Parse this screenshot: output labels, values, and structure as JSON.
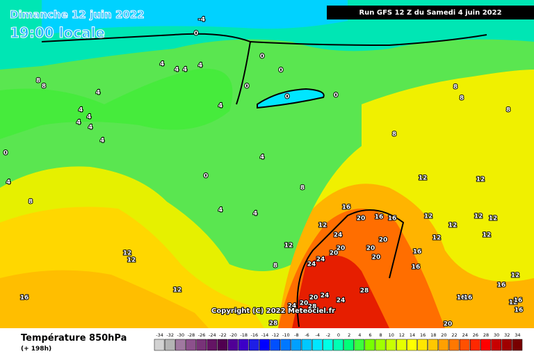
{
  "header": {
    "date": "Dimanche 12 juin 2022",
    "time": "19:00 locale",
    "run": "Run GFS 12 Z du Samedi 4 juin 2022"
  },
  "map": {
    "labels": [
      -4,
      0,
      0,
      0,
      0,
      0,
      0,
      4,
      4,
      4,
      4,
      4,
      4,
      4,
      4,
      4,
      4,
      4,
      8,
      8,
      4,
      8,
      0,
      0,
      4,
      4,
      4,
      8,
      8,
      8,
      8,
      8,
      8,
      12,
      12,
      12,
      16,
      12,
      16,
      12,
      12,
      12,
      12,
      12,
      12,
      12,
      12,
      12,
      12,
      20,
      16,
      16,
      24,
      20,
      20,
      20,
      20,
      20,
      24,
      24,
      16,
      16,
      12,
      20,
      24,
      24,
      28,
      20,
      24,
      28,
      28,
      16,
      16,
      16,
      20,
      16,
      16
    ],
    "copyright": "Copyright (C) 2022 Meteociel.fr"
  },
  "legend": {
    "title": "Température 850hPa",
    "subtitle": "(+ 198h)",
    "ticks": [
      -34,
      -32,
      -30,
      -28,
      -26,
      -24,
      -22,
      -20,
      -18,
      -16,
      -14,
      -12,
      -10,
      -8,
      -6,
      -4,
      -2,
      0,
      2,
      4,
      6,
      8,
      10,
      12,
      14,
      16,
      18,
      20,
      22,
      24,
      26,
      28,
      30,
      32,
      34
    ],
    "colors": [
      "#d2d2d2",
      "#b4b4b4",
      "#a078a0",
      "#8c508c",
      "#783278",
      "#641464",
      "#500050",
      "#500096",
      "#3c00c8",
      "#1e1ee6",
      "#0000ff",
      "#0050ff",
      "#0078ff",
      "#00a0ff",
      "#00c8ff",
      "#00e6ff",
      "#00ffe6",
      "#00ffb4",
      "#00ff78",
      "#3cff3c",
      "#78ff00",
      "#a0ff00",
      "#c8ff00",
      "#e6ff00",
      "#ffff00",
      "#ffe600",
      "#ffc800",
      "#ffa000",
      "#ff7800",
      "#ff5000",
      "#ff2800",
      "#ff0000",
      "#c80000",
      "#a00000",
      "#780000"
    ]
  }
}
